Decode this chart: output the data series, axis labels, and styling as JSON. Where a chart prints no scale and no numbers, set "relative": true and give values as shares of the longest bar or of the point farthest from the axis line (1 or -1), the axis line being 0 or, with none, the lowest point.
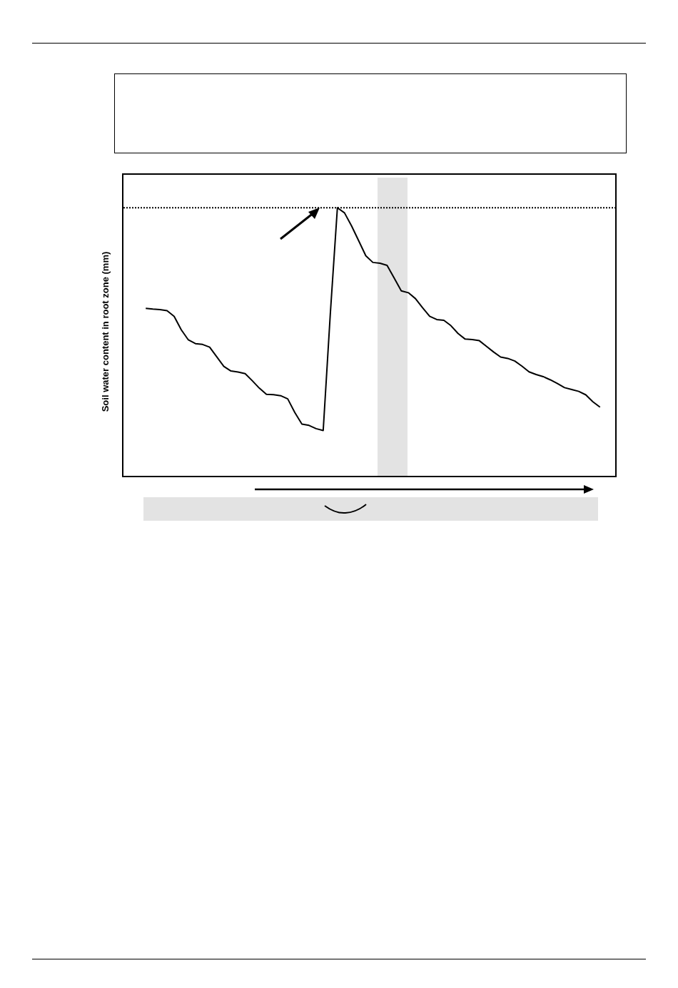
{
  "chart_data": {
    "type": "line",
    "ylabel": "Soil water content in root zone (mm)",
    "categories": [
      null,
      null,
      null,
      null,
      null,
      null,
      null,
      null,
      null,
      null,
      null,
      null,
      null,
      null,
      null,
      null,
      null,
      null,
      null,
      null,
      null,
      null,
      null,
      null,
      null,
      null,
      null,
      null,
      null,
      null,
      null,
      null,
      null,
      null,
      null,
      null,
      null,
      null,
      null,
      null,
      null,
      null,
      null,
      null,
      null,
      null,
      null,
      null,
      null,
      null,
      null,
      null,
      null,
      null,
      null,
      null,
      null,
      null,
      null,
      null,
      null,
      null,
      null,
      null,
      null
    ],
    "series": [
      {
        "color": "#000000",
        "values": [
          0.625,
          0.622,
          0.62,
          0.616,
          0.595,
          0.545,
          0.507,
          0.493,
          0.49,
          0.48,
          0.444,
          0.408,
          0.391,
          0.387,
          0.381,
          0.355,
          0.327,
          0.304,
          0.303,
          0.299,
          0.287,
          0.236,
          0.193,
          0.188,
          0.176,
          0.169,
          0.603,
          1.0,
          0.981,
          0.932,
          0.877,
          0.821,
          0.796,
          0.793,
          0.785,
          0.738,
          0.69,
          0.683,
          0.661,
          0.627,
          0.595,
          0.583,
          0.58,
          0.56,
          0.531,
          0.51,
          0.508,
          0.504,
          0.483,
          0.462,
          0.443,
          0.438,
          0.428,
          0.409,
          0.388,
          0.378,
          0.37,
          0.358,
          0.344,
          0.329,
          0.322,
          0.315,
          0.302,
          0.276,
          0.256
        ]
      }
    ],
    "relative": true,
    "ref_lines": [
      {
        "axis": "y",
        "value": 1,
        "line_style": "dotted",
        "color": "#000000"
      }
    ],
    "grid": false,
    "legend": false,
    "marker": "none",
    "line_style": "solid"
  }
}
